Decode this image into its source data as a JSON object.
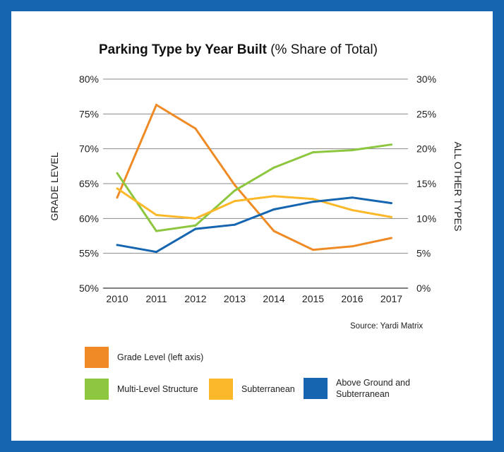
{
  "chart_data": {
    "type": "line",
    "title": "Parking Type by Year Built",
    "subtitle": "(% Share of Total)",
    "xlabel": "",
    "ylabel_left": "GRADE LEVEL",
    "ylabel_right": "ALL OTHER TYPES",
    "categories": [
      "2010",
      "2011",
      "2012",
      "2013",
      "2014",
      "2015",
      "2016",
      "2017"
    ],
    "ylim_left": [
      50,
      80
    ],
    "ylim_right": [
      0,
      30
    ],
    "yticks_left": [
      "80%",
      "75%",
      "70%",
      "65%",
      "60%",
      "55%",
      "50%"
    ],
    "yticks_right": [
      "30%",
      "25%",
      "20%",
      "15%",
      "10%",
      "5%",
      "0%"
    ],
    "grid": true,
    "source": "Source: Yardi Matrix",
    "series": [
      {
        "name": "Grade Level (left axis)",
        "axis": "left",
        "color": "#f08a24",
        "values": [
          63.0,
          76.3,
          72.9,
          64.8,
          58.2,
          55.5,
          56.0,
          57.2
        ]
      },
      {
        "name": "Multi-Level Structure",
        "axis": "right",
        "color": "#8dc63f",
        "values": [
          16.5,
          8.2,
          9.0,
          14.0,
          17.3,
          19.5,
          19.8,
          20.6
        ]
      },
      {
        "name": "Subterranean",
        "axis": "right",
        "color": "#fbb829",
        "values": [
          14.3,
          10.5,
          10.0,
          12.5,
          13.2,
          12.8,
          11.2,
          10.2
        ]
      },
      {
        "name": "Above Ground and Subterranean",
        "axis": "right",
        "color": "#1565b0",
        "values": [
          6.2,
          5.2,
          8.5,
          9.1,
          11.3,
          12.4,
          13.0,
          12.2
        ]
      }
    ],
    "legend": [
      {
        "label": "Grade Level (left axis)",
        "color": "#f08a24"
      },
      {
        "label": "Multi-Level Structure",
        "color": "#8dc63f"
      },
      {
        "label": "Subterranean",
        "color": "#fbb829"
      },
      {
        "label_line1": "Above Ground and",
        "label_line2": "Subterranean",
        "color": "#1565b0"
      }
    ]
  }
}
